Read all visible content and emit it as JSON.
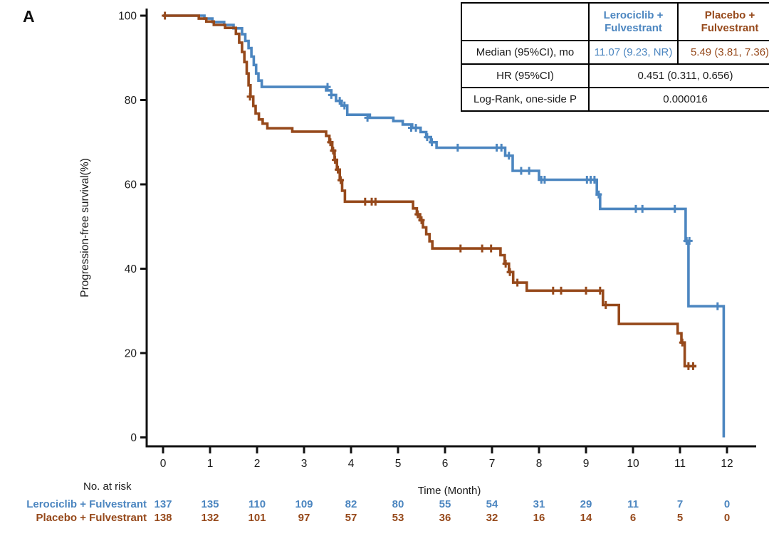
{
  "panel_label": "A",
  "colors": {
    "lerociclib": "#4c86c0",
    "placebo": "#96491b",
    "axis": "#111111",
    "text": "#1a1a1a"
  },
  "chart_data": {
    "type": "line",
    "subtype": "kaplan-meier-step",
    "title": "",
    "xlabel": "Time (Month)",
    "ylabel": "Progression-free survival(%)",
    "xlim": [
      0,
      12
    ],
    "ylim": [
      0,
      100
    ],
    "xticks": [
      0,
      1,
      2,
      3,
      4,
      5,
      6,
      7,
      8,
      9,
      10,
      11,
      12
    ],
    "yticks": [
      0,
      20,
      40,
      60,
      80,
      100
    ],
    "grid": false,
    "legend_position": "none",
    "series": [
      {
        "name": "Lerociclib + Fulvestrant",
        "color": "#4c86c0",
        "steps": [
          [
            0,
            100
          ],
          [
            0.88,
            99.3
          ],
          [
            1.05,
            98.5
          ],
          [
            1.3,
            97.8
          ],
          [
            1.5,
            97
          ],
          [
            1.68,
            95.6
          ],
          [
            1.75,
            94
          ],
          [
            1.82,
            92.3
          ],
          [
            1.88,
            90.3
          ],
          [
            1.93,
            88.3
          ],
          [
            1.98,
            86.3
          ],
          [
            2.03,
            84.6
          ],
          [
            2.1,
            83.1
          ],
          [
            3.47,
            82.3
          ],
          [
            3.58,
            81.2
          ],
          [
            3.68,
            79.8
          ],
          [
            3.8,
            78.7
          ],
          [
            3.92,
            76.5
          ],
          [
            4.4,
            75.8
          ],
          [
            4.9,
            75
          ],
          [
            5.1,
            74.2
          ],
          [
            5.3,
            73.4
          ],
          [
            5.48,
            72.4
          ],
          [
            5.6,
            71.2
          ],
          [
            5.7,
            70
          ],
          [
            5.82,
            68.7
          ],
          [
            7.28,
            66.8
          ],
          [
            7.44,
            63.2
          ],
          [
            8,
            61.1
          ],
          [
            9.23,
            57.6
          ],
          [
            9.3,
            54.2
          ],
          [
            11.12,
            46.6
          ],
          [
            11.18,
            31.1
          ],
          [
            11.93,
            0
          ]
        ],
        "end": 11.93,
        "censors": [
          [
            3.5,
            83.1
          ],
          [
            3.58,
            81.2
          ],
          [
            3.76,
            79.8
          ],
          [
            3.86,
            78.7
          ],
          [
            4.35,
            75.8
          ],
          [
            5.28,
            73.4
          ],
          [
            5.38,
            73.4
          ],
          [
            5.62,
            71.2
          ],
          [
            5.72,
            70
          ],
          [
            6.27,
            68.7
          ],
          [
            7.1,
            68.7
          ],
          [
            7.2,
            68.7
          ],
          [
            7.36,
            66.8
          ],
          [
            7.62,
            63.2
          ],
          [
            7.79,
            63.2
          ],
          [
            8.05,
            61.1
          ],
          [
            8.12,
            61.1
          ],
          [
            9.02,
            61.1
          ],
          [
            9.1,
            61.1
          ],
          [
            9.18,
            61.1
          ],
          [
            9.27,
            57.6
          ],
          [
            10.06,
            54.2
          ],
          [
            10.2,
            54.2
          ],
          [
            10.89,
            54.2
          ],
          [
            11.14,
            46.6
          ],
          [
            11.2,
            46.6
          ],
          [
            11.8,
            31.1
          ]
        ]
      },
      {
        "name": "Placebo + Fulvestrant",
        "color": "#96491b",
        "steps": [
          [
            0,
            100
          ],
          [
            0.76,
            99.3
          ],
          [
            0.92,
            98.6
          ],
          [
            1.08,
            97.8
          ],
          [
            1.32,
            97.1
          ],
          [
            1.55,
            95.7
          ],
          [
            1.62,
            93.6
          ],
          [
            1.68,
            91.4
          ],
          [
            1.73,
            89
          ],
          [
            1.78,
            86.3
          ],
          [
            1.82,
            83.5
          ],
          [
            1.86,
            80.8
          ],
          [
            1.92,
            78.6
          ],
          [
            1.97,
            76.8
          ],
          [
            2.04,
            75.4
          ],
          [
            2.12,
            74.4
          ],
          [
            2.22,
            73.3
          ],
          [
            2.75,
            72.5
          ],
          [
            3.47,
            71.5
          ],
          [
            3.54,
            70
          ],
          [
            3.6,
            68
          ],
          [
            3.65,
            65.8
          ],
          [
            3.7,
            63.5
          ],
          [
            3.76,
            61
          ],
          [
            3.81,
            58.5
          ],
          [
            3.87,
            55.9
          ],
          [
            5.32,
            54.3
          ],
          [
            5.4,
            52.9
          ],
          [
            5.47,
            51.5
          ],
          [
            5.53,
            49.8
          ],
          [
            5.6,
            48.2
          ],
          [
            5.67,
            46.5
          ],
          [
            5.73,
            44.8
          ],
          [
            7.18,
            43.2
          ],
          [
            7.27,
            41.2
          ],
          [
            7.36,
            39.2
          ],
          [
            7.45,
            36.7
          ],
          [
            7.74,
            34.8
          ],
          [
            9.36,
            31.4
          ],
          [
            9.7,
            26.9
          ],
          [
            10.95,
            24.7
          ],
          [
            11.03,
            22.5
          ],
          [
            11.1,
            16.9
          ]
        ],
        "end": 11.35,
        "censors": [
          [
            0.04,
            100
          ],
          [
            1.85,
            80.8
          ],
          [
            3.56,
            70
          ],
          [
            3.62,
            68
          ],
          [
            3.66,
            65.8
          ],
          [
            3.72,
            63.5
          ],
          [
            3.78,
            61
          ],
          [
            4.3,
            55.9
          ],
          [
            4.44,
            55.9
          ],
          [
            4.52,
            55.9
          ],
          [
            5.42,
            52.9
          ],
          [
            5.5,
            51.5
          ],
          [
            6.33,
            44.8
          ],
          [
            6.79,
            44.8
          ],
          [
            6.98,
            44.8
          ],
          [
            7.29,
            41.2
          ],
          [
            7.38,
            39.2
          ],
          [
            7.54,
            36.7
          ],
          [
            8.3,
            34.8
          ],
          [
            8.47,
            34.8
          ],
          [
            9,
            34.8
          ],
          [
            9.3,
            34.8
          ],
          [
            9.42,
            31.4
          ],
          [
            11.05,
            22.5
          ],
          [
            11.18,
            16.9
          ],
          [
            11.28,
            16.9
          ]
        ]
      }
    ]
  },
  "stats_table": {
    "header": {
      "blank": "",
      "lerociclib": "Lerociclib +\nFulvestrant",
      "placebo": "Placebo +\nFulvestrant"
    },
    "median_row": {
      "label": "Median (95%CI), mo",
      "lerociclib": "11.07 (9.23, NR)",
      "placebo": "5.49 (3.81, 7.36)"
    },
    "hr_row": {
      "label": "HR (95%CI)",
      "value": "0.451 (0.311, 0.656)"
    },
    "logrank_row": {
      "label": "Log-Rank, one-side P",
      "value": "0.000016"
    }
  },
  "risk_table": {
    "title": "No. at risk",
    "rows": [
      {
        "label": "Lerociclib + Fulvestrant",
        "counts": [
          "137",
          "135",
          "110",
          "109",
          "82",
          "80",
          "55",
          "54",
          "31",
          "29",
          "11",
          "7",
          "0"
        ]
      },
      {
        "label": "Placebo + Fulvestrant",
        "counts": [
          "138",
          "132",
          "101",
          "97",
          "57",
          "53",
          "36",
          "32",
          "16",
          "14",
          "6",
          "5",
          "0"
        ]
      }
    ]
  }
}
